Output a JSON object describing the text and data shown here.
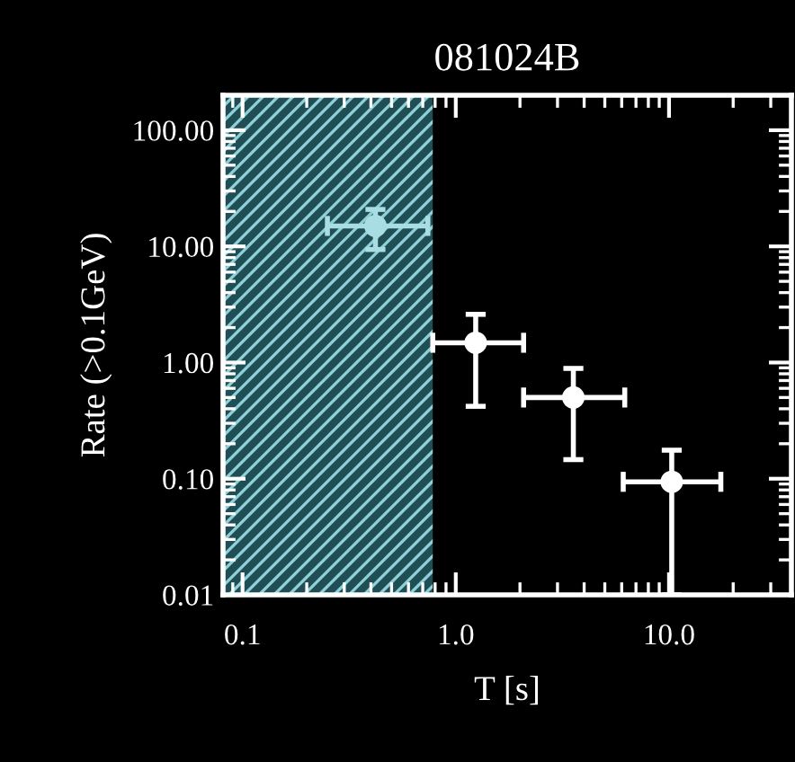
{
  "chart_data": {
    "type": "scatter",
    "title": "081024B",
    "xlabel": "T [s]",
    "ylabel": "Rate (>0.1GeV)",
    "log": "xy",
    "xlim": [
      0.081,
      37.5
    ],
    "ylim": [
      0.01,
      200
    ],
    "xticks": [
      {
        "value": 0.1,
        "label": "0.1"
      },
      {
        "value": 1,
        "label": "1.0"
      },
      {
        "value": 10,
        "label": "10.0"
      }
    ],
    "yticks": [
      {
        "value": 0.01,
        "label": "0.01"
      },
      {
        "value": 0.1,
        "label": "0.10"
      },
      {
        "value": 1,
        "label": "1.00"
      },
      {
        "value": 10,
        "label": "10.00"
      },
      {
        "value": 100,
        "label": "100.00"
      }
    ],
    "x": [
      0.42,
      1.24,
      3.56,
      10.3
    ],
    "values": [
      15,
      1.48,
      0.5,
      0.094
    ],
    "colors": [
      "#a8dde3",
      "#ffffff",
      "#ffffff",
      "#ffffff"
    ],
    "errors": [
      [
        9.4,
        20.8
      ],
      [
        0.42,
        2.6
      ],
      [
        0.146,
        0.89
      ],
      [
        0.01,
        0.176
      ]
    ],
    "xerrors": [
      [
        0.25,
        0.74
      ],
      [
        0.78,
        2.08
      ],
      [
        2.08,
        6.2
      ],
      [
        6.1,
        17.5
      ]
    ],
    "marker": "circle",
    "grid": false,
    "legend": false,
    "bands": [
      {
        "axis": "x",
        "from": 0.081,
        "to": 0.78,
        "color": "#1f4f55"
      }
    ]
  }
}
